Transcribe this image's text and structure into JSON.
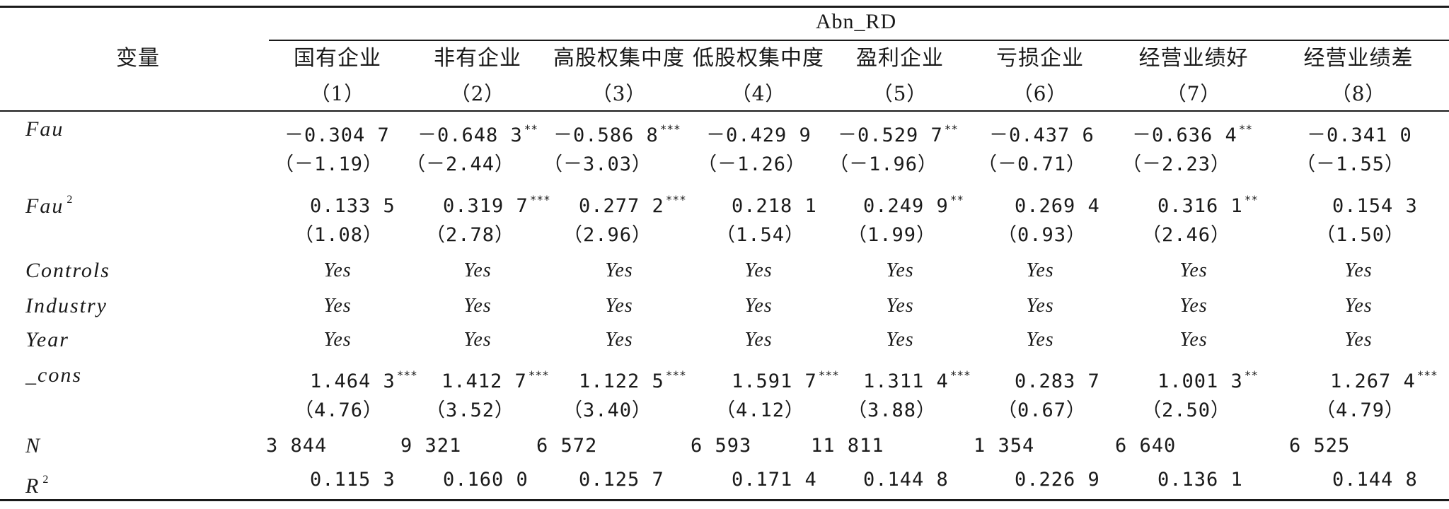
{
  "header": {
    "variable_label": "变量",
    "group_title": "Abn_RD",
    "columns": [
      {
        "name": "国有企业",
        "num": "（1）"
      },
      {
        "name": "非有企业",
        "num": "（2）"
      },
      {
        "name": "高股权集中度",
        "num": "（3）"
      },
      {
        "name": "低股权集中度",
        "num": "（4）"
      },
      {
        "name": "盈利企业",
        "num": "（5）"
      },
      {
        "name": "亏损企业",
        "num": "（6）"
      },
      {
        "name": "经营业绩好",
        "num": "（7）"
      },
      {
        "name": "经营业绩差",
        "num": "（8）"
      }
    ]
  },
  "rows": {
    "fau": {
      "label": "Fau",
      "coef": [
        "－0.304 7",
        "－0.648 3",
        "－0.586 8",
        "－0.429 9",
        "－0.529 7",
        "－0.437 6",
        "－0.636 4",
        "－0.341 0"
      ],
      "stars": [
        "",
        "**",
        "***",
        "",
        "**",
        "",
        "**",
        ""
      ],
      "t": [
        "（－1.19）",
        "（－2.44）",
        "（－3.03）",
        "（－1.26）",
        "（－1.96）",
        "（－0.71）",
        "（－2.23）",
        "（－1.55）"
      ]
    },
    "fau2": {
      "label": "Fau",
      "sup": "2",
      "coef": [
        "0.133 5",
        "0.319 7",
        "0.277 2",
        "0.218 1",
        "0.249 9",
        "0.269 4",
        "0.316 1",
        "0.154 3"
      ],
      "stars": [
        "",
        "***",
        "***",
        "",
        "**",
        "",
        "**",
        ""
      ],
      "t": [
        "（1.08）",
        "（2.78）",
        "（2.96）",
        "（1.54）",
        "（1.99）",
        "（0.93）",
        "（2.46）",
        "（1.50）"
      ]
    },
    "controls": {
      "label": "Controls",
      "values": [
        "Yes",
        "Yes",
        "Yes",
        "Yes",
        "Yes",
        "Yes",
        "Yes",
        "Yes"
      ]
    },
    "industry": {
      "label": "Industry",
      "values": [
        "Yes",
        "Yes",
        "Yes",
        "Yes",
        "Yes",
        "Yes",
        "Yes",
        "Yes"
      ]
    },
    "year": {
      "label": "Year",
      "values": [
        "Yes",
        "Yes",
        "Yes",
        "Yes",
        "Yes",
        "Yes",
        "Yes",
        "Yes"
      ]
    },
    "cons": {
      "label": "_cons",
      "coef": [
        "1.464 3",
        "1.412 7",
        "1.122 5",
        "1.591 7",
        "1.311 4",
        "0.283 7",
        "1.001 3",
        "1.267 4"
      ],
      "stars": [
        "***",
        "***",
        "***",
        "***",
        "***",
        "",
        "**",
        "***"
      ],
      "t": [
        "（4.76）",
        "（3.52）",
        "（3.40）",
        "（4.12）",
        "（3.88）",
        "（0.67）",
        "（2.50）",
        "（4.79）"
      ]
    },
    "n": {
      "label": "N",
      "values": [
        "3 844",
        "9 321",
        "6 572",
        "6 593",
        "11 811",
        "1 354",
        "6 640",
        "6 525"
      ]
    },
    "r2": {
      "label": "R",
      "sup": "2",
      "values": [
        "0.115 3",
        "0.160 0",
        "0.125 7",
        "0.171 4",
        "0.144 8",
        "0.226 9",
        "0.136 1",
        "0.144 8"
      ]
    }
  }
}
